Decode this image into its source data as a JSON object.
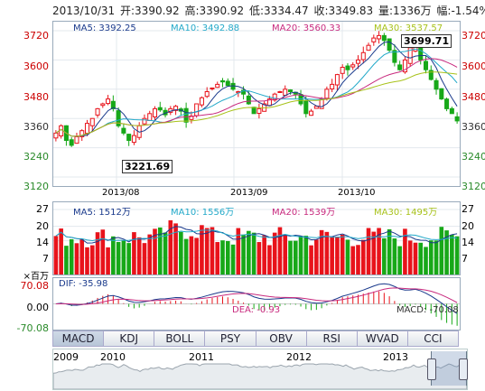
{
  "header": {
    "date": "2013/10/31",
    "open": "开:3390.92",
    "high": "高:3390.92",
    "low": "低:3334.47",
    "close": "收:3349.83",
    "volume": "量:1336万",
    "change": "幅:-1.54%"
  },
  "price_pane": {
    "ma5": "MA5: 3392.25",
    "ma10": "MA10: 3492.88",
    "ma20": "MA20: 3560.33",
    "ma30": "MA30: 3537.57",
    "high_callout": "3699.71",
    "low_callout": "3221.69",
    "y_ticks": [
      "3720",
      "3600",
      "3480",
      "3360",
      "3240",
      "3120"
    ],
    "month_labels": [
      "2013/08",
      "2013/09",
      "2013/10"
    ]
  },
  "volume_pane": {
    "ma5": "MA5: 1512万",
    "ma10": "MA10: 1556万",
    "ma20": "MA20: 1539万",
    "ma30": "MA30: 1495万",
    "y_ticks": [
      "27",
      "20",
      "14",
      "7"
    ],
    "unit": "×百万"
  },
  "macd_pane": {
    "dif": "DIF: -35.98",
    "dea": "DEA: -0.93",
    "macd": "MACD: -70.08",
    "y_ticks": [
      "70.08",
      "0.00",
      "-70.08"
    ]
  },
  "tabs": [
    "MACD",
    "KDJ",
    "BOLL",
    "PSY",
    "OBV",
    "RSI",
    "WVAD",
    "CCI"
  ],
  "overview_years": [
    "2009",
    "2010",
    "2011",
    "2012",
    "2013"
  ],
  "colors": {
    "up": "#e8131b",
    "down": "#17a818",
    "ma5": "#1a3a8c",
    "ma10": "#23a9c9",
    "ma20": "#c82a7e",
    "ma30": "#a8c21a"
  },
  "chart_data": {
    "type": "candlestick",
    "title": "",
    "ylim": [
      3120,
      3720
    ],
    "closes": [
      3300,
      3330,
      3270,
      3250,
      3285,
      3310,
      3340,
      3360,
      3400,
      3420,
      3440,
      3400,
      3330,
      3300,
      3270,
      3290,
      3330,
      3360,
      3380,
      3400,
      3395,
      3375,
      3400,
      3410,
      3390,
      3345,
      3370,
      3420,
      3445,
      3470,
      3485,
      3500,
      3510,
      3495,
      3480,
      3470,
      3460,
      3420,
      3380,
      3400,
      3420,
      3440,
      3460,
      3470,
      3480,
      3470,
      3460,
      3420,
      3380,
      3390,
      3410,
      3440,
      3480,
      3500,
      3540,
      3570,
      3560,
      3580,
      3600,
      3630,
      3660,
      3690,
      3700,
      3680,
      3640,
      3590,
      3560,
      3600,
      3650,
      3680,
      3600,
      3560,
      3520,
      3480,
      3440,
      3400,
      3380,
      3350
    ],
    "volume_ma": [
      1512,
      1556,
      1539,
      1495
    ],
    "macd_range": [
      -70.08,
      70.08
    ]
  }
}
